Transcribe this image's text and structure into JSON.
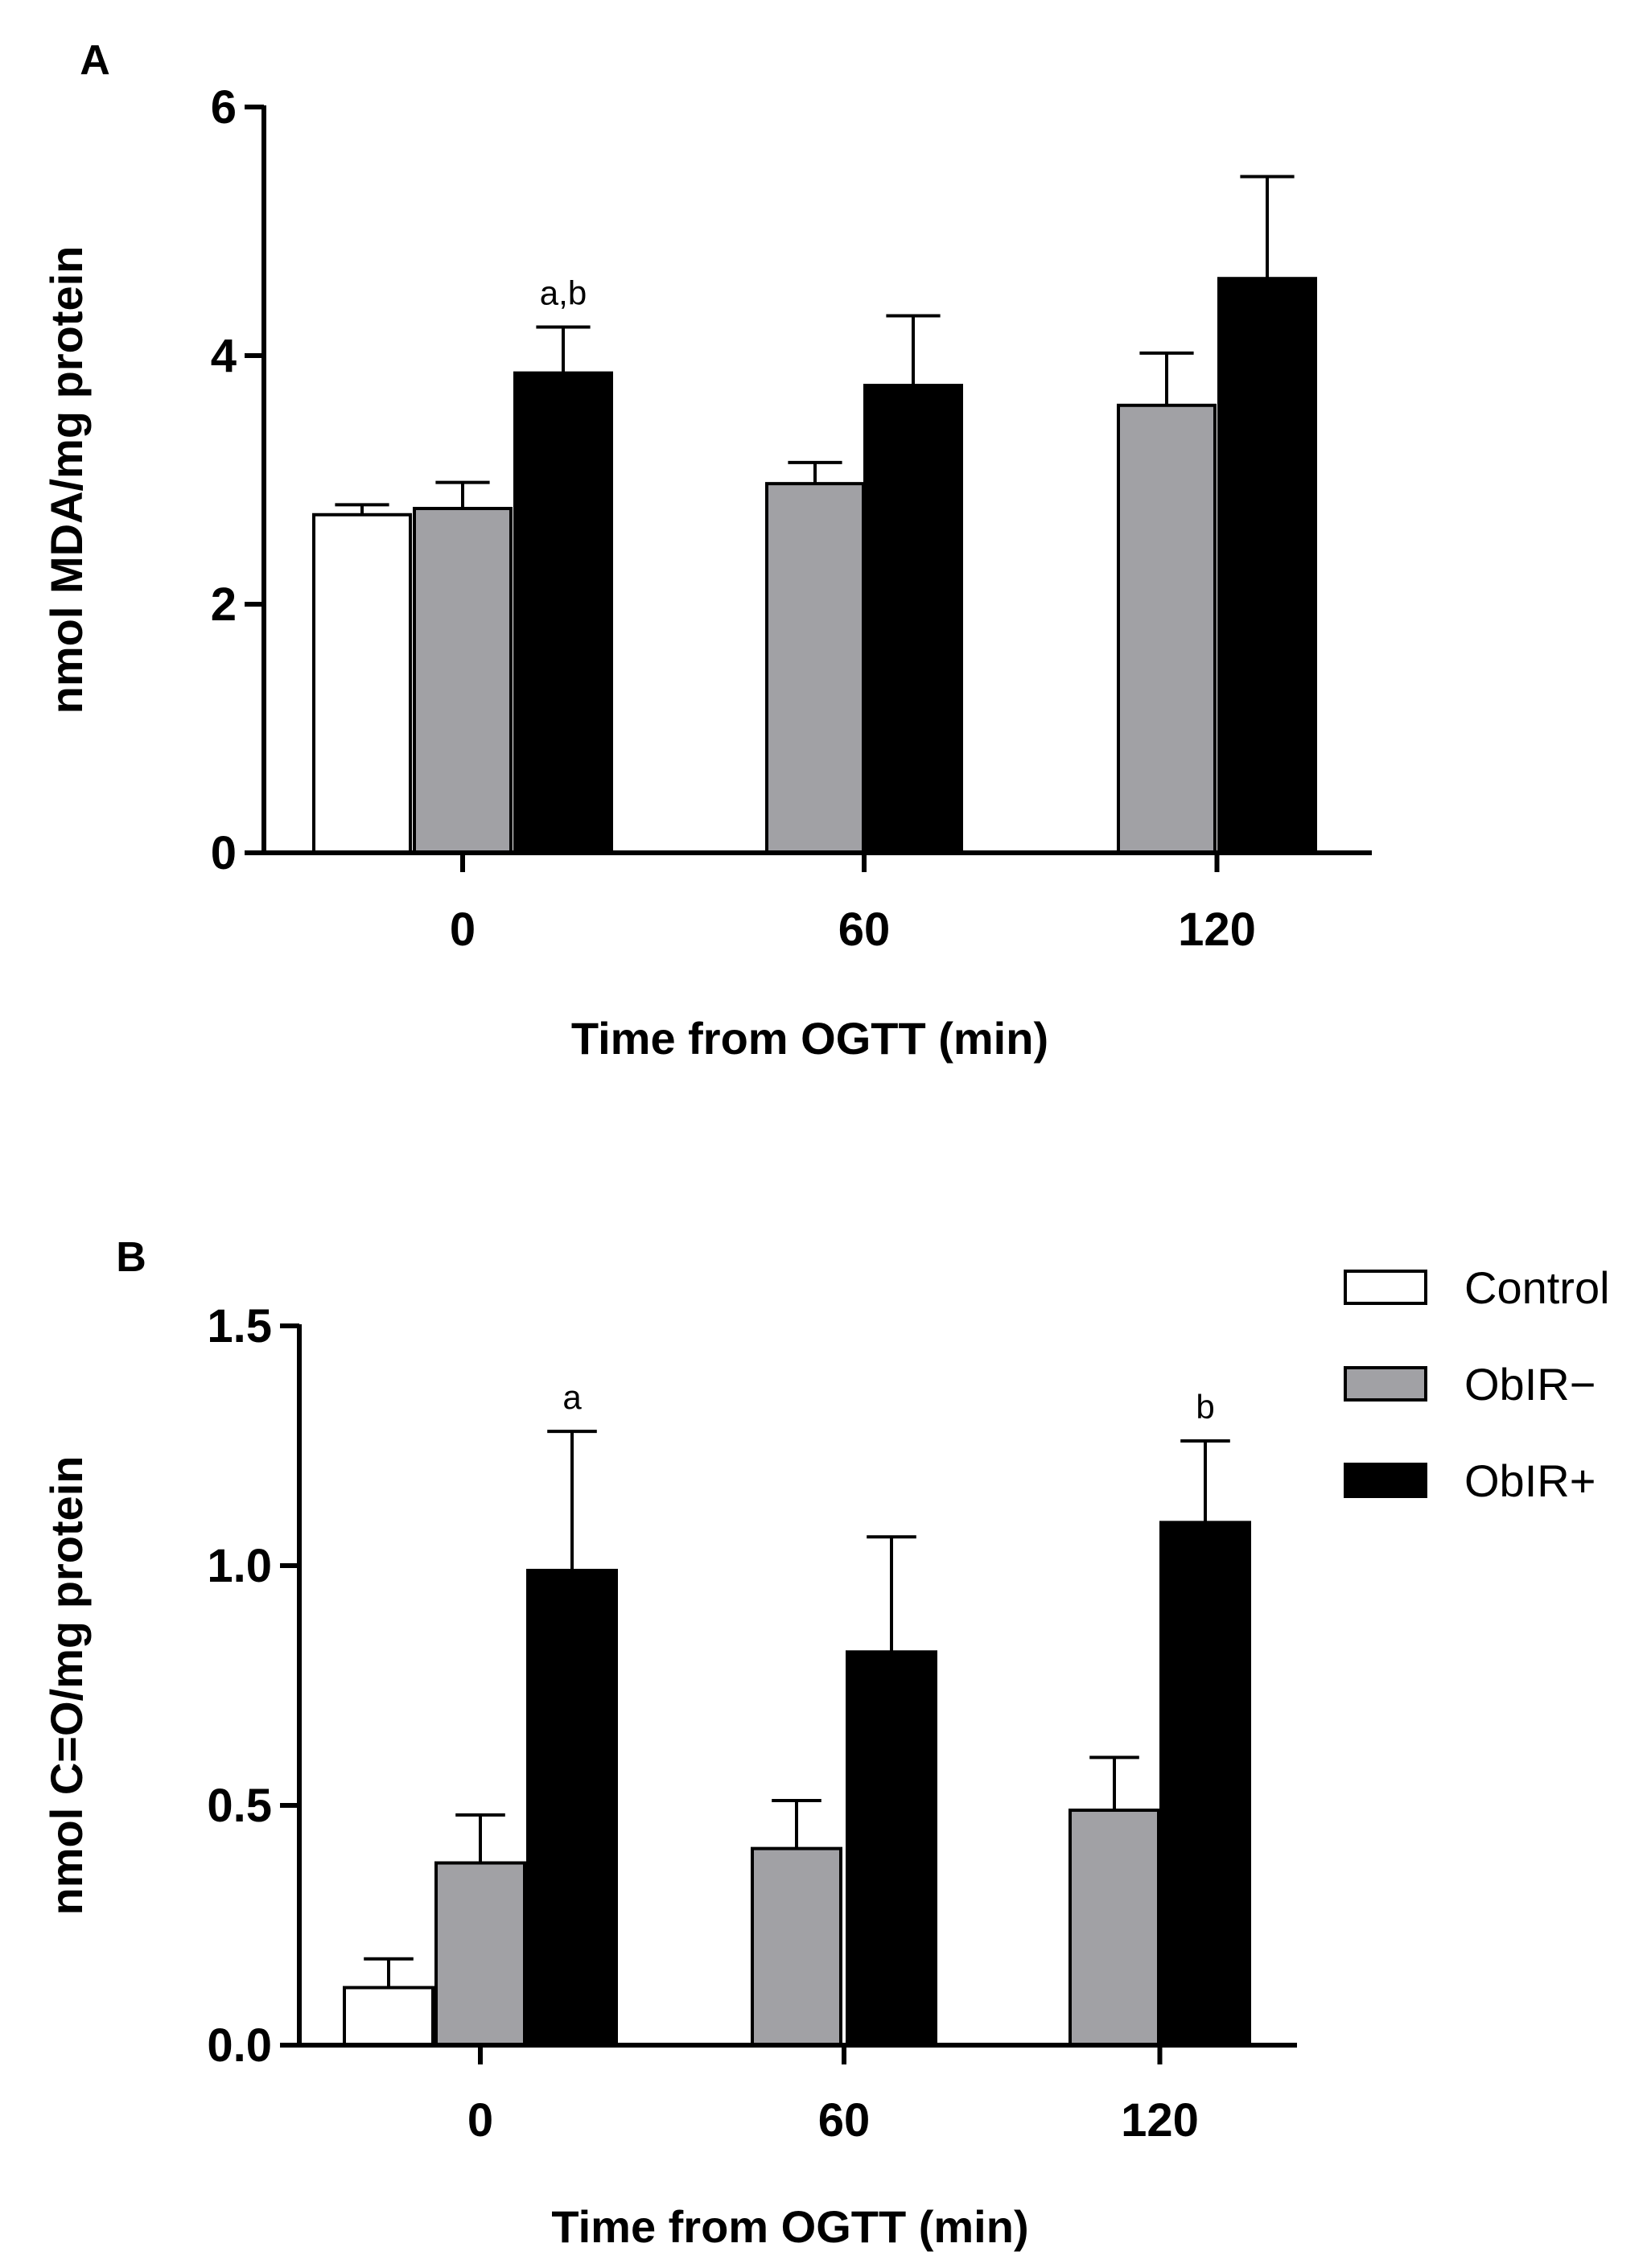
{
  "colors": {
    "Control": "#ffffff",
    "ObIR−": "#a1a1a5",
    "ObIR+": "#000000"
  },
  "legend": {
    "entries": [
      "Control",
      "ObIR−",
      "ObIR+"
    ]
  },
  "chart_data": [
    {
      "panel": "A",
      "type": "bar",
      "categories": [
        "0",
        "60",
        "120"
      ],
      "xlabel": "Time from OGTT (min)",
      "ylabel": "nmol MDA/mg protein",
      "ylim": [
        0,
        6
      ],
      "yticks": [
        0,
        2,
        4,
        6
      ],
      "ytick_labels": [
        "0",
        "2",
        "4",
        "6"
      ],
      "series": [
        {
          "name": "Control",
          "values": [
            2.72,
            null,
            null
          ],
          "errors": [
            0.08,
            null,
            null
          ]
        },
        {
          "name": "ObIR−",
          "values": [
            2.77,
            2.97,
            3.6
          ],
          "errors": [
            0.21,
            0.17,
            0.42
          ]
        },
        {
          "name": "ObIR+",
          "values": [
            3.86,
            3.76,
            4.62
          ],
          "errors": [
            0.37,
            0.56,
            0.82
          ]
        }
      ],
      "annotations": [
        {
          "category": "0",
          "series": "ObIR+",
          "text": "a,b"
        }
      ]
    },
    {
      "panel": "B",
      "type": "bar",
      "categories": [
        "0",
        "60",
        "120"
      ],
      "xlabel": "Time from OGTT (min)",
      "ylabel": "nmol C=O/mg protein",
      "ylim": [
        0,
        1.5
      ],
      "yticks": [
        0,
        0.5,
        1.0,
        1.5
      ],
      "ytick_labels": [
        "0.0",
        "0.5",
        "1.0",
        "1.5"
      ],
      "series": [
        {
          "name": "Control",
          "values": [
            0.12,
            null,
            null
          ],
          "errors": [
            0.06,
            null,
            null
          ]
        },
        {
          "name": "ObIR−",
          "values": [
            0.38,
            0.41,
            0.49
          ],
          "errors": [
            0.1,
            0.1,
            0.11
          ]
        },
        {
          "name": "ObIR+",
          "values": [
            0.99,
            0.82,
            1.09
          ],
          "errors": [
            0.29,
            0.24,
            0.17
          ]
        }
      ],
      "annotations": [
        {
          "category": "0",
          "series": "ObIR+",
          "text": "a"
        },
        {
          "category": "120",
          "series": "ObIR+",
          "text": "b"
        }
      ]
    }
  ]
}
